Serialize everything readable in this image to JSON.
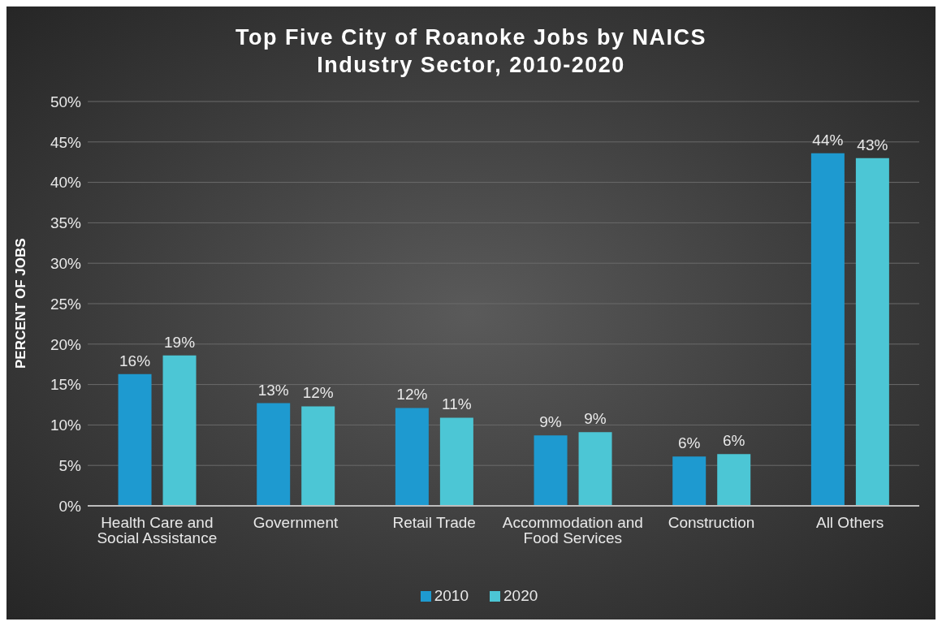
{
  "chart_data": {
    "type": "bar",
    "title": "Top Five City of Roanoke Jobs by NAICS Industry Sector, 2010-2020",
    "ylabel": "PERCENT OF JOBS",
    "categories": [
      "Health Care and Social Assistance",
      "Government",
      "Retail Trade",
      "Accommodation and Food Services",
      "Construction",
      "All Others"
    ],
    "series": [
      {
        "name": "2010",
        "color": "#1e9ad0",
        "values": [
          16.3,
          12.7,
          12.1,
          8.7,
          6.1,
          43.6
        ],
        "value_labels": [
          "16%",
          "13%",
          "12%",
          "9%",
          "6%",
          "44%"
        ]
      },
      {
        "name": "2020",
        "color": "#4cc6d5",
        "values": [
          18.6,
          12.3,
          10.9,
          9.1,
          6.4,
          43.0
        ],
        "value_labels": [
          "19%",
          "12%",
          "11%",
          "9%",
          "6%",
          "43%"
        ]
      }
    ],
    "ylim": [
      0,
      50
    ],
    "yticks": [
      {
        "value": 0,
        "label": "0%"
      },
      {
        "value": 5,
        "label": "5%"
      },
      {
        "value": 10,
        "label": "10%"
      },
      {
        "value": 15,
        "label": "15%"
      },
      {
        "value": 20,
        "label": "20%"
      },
      {
        "value": 25,
        "label": "25%"
      },
      {
        "value": 30,
        "label": "30%"
      },
      {
        "value": 35,
        "label": "35%"
      },
      {
        "value": 40,
        "label": "40%"
      },
      {
        "value": 45,
        "label": "45%"
      },
      {
        "value": 50,
        "label": "50%"
      }
    ],
    "grid": "y",
    "legend": "bottom"
  }
}
